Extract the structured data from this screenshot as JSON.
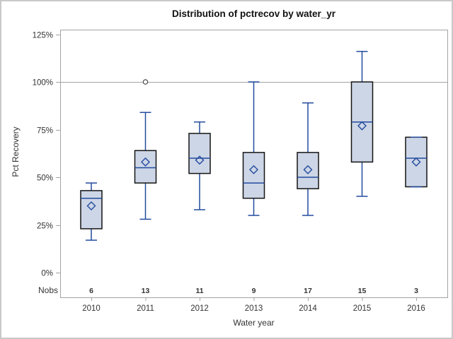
{
  "chart_data": {
    "type": "box",
    "title": "Distribution of pctrecov by water_yr",
    "xlabel": "Water year",
    "ylabel": "Pct Recovery",
    "nobs_label": "Nobs",
    "y_ticks": [
      "0%",
      "25%",
      "50%",
      "75%",
      "100%",
      "125%"
    ],
    "y_tick_values": [
      0,
      25,
      50,
      75,
      100,
      125
    ],
    "ylim": [
      0,
      127
    ],
    "reference_line": 100,
    "grid": "off",
    "legend": "none",
    "categories": [
      "2010",
      "2011",
      "2012",
      "2013",
      "2014",
      "2015",
      "2016"
    ],
    "series": [
      {
        "year": "2010",
        "nobs": 6,
        "min": 17,
        "q1": 23,
        "median": 39,
        "mean": 35,
        "q3": 43,
        "max": 47,
        "outliers": []
      },
      {
        "year": "2011",
        "nobs": 13,
        "min": 28,
        "q1": 47,
        "median": 55,
        "mean": 58,
        "q3": 64,
        "max": 84,
        "outliers": [
          100
        ]
      },
      {
        "year": "2012",
        "nobs": 11,
        "min": 33,
        "q1": 52,
        "median": 60,
        "mean": 59,
        "q3": 73,
        "max": 79,
        "outliers": []
      },
      {
        "year": "2013",
        "nobs": 9,
        "min": 30,
        "q1": 39,
        "median": 47,
        "mean": 54,
        "q3": 63,
        "max": 100,
        "outliers": []
      },
      {
        "year": "2014",
        "nobs": 17,
        "min": 30,
        "q1": 44,
        "median": 50,
        "mean": 54,
        "q3": 63,
        "max": 89,
        "outliers": []
      },
      {
        "year": "2015",
        "nobs": 15,
        "min": 40,
        "q1": 58,
        "median": 79,
        "mean": 77,
        "q3": 100,
        "max": 116,
        "outliers": []
      },
      {
        "year": "2016",
        "nobs": 3,
        "min": 45,
        "q1": 45,
        "median": 60,
        "mean": 58,
        "q3": 71,
        "max": 71,
        "outliers": []
      }
    ],
    "colors": {
      "box_fill": "#cdd6e6",
      "box_stroke": "#141414",
      "blue": "#234b9e",
      "frame": "#a3a3a3",
      "outlier": "#3d3d3d",
      "text": "#333333"
    }
  }
}
